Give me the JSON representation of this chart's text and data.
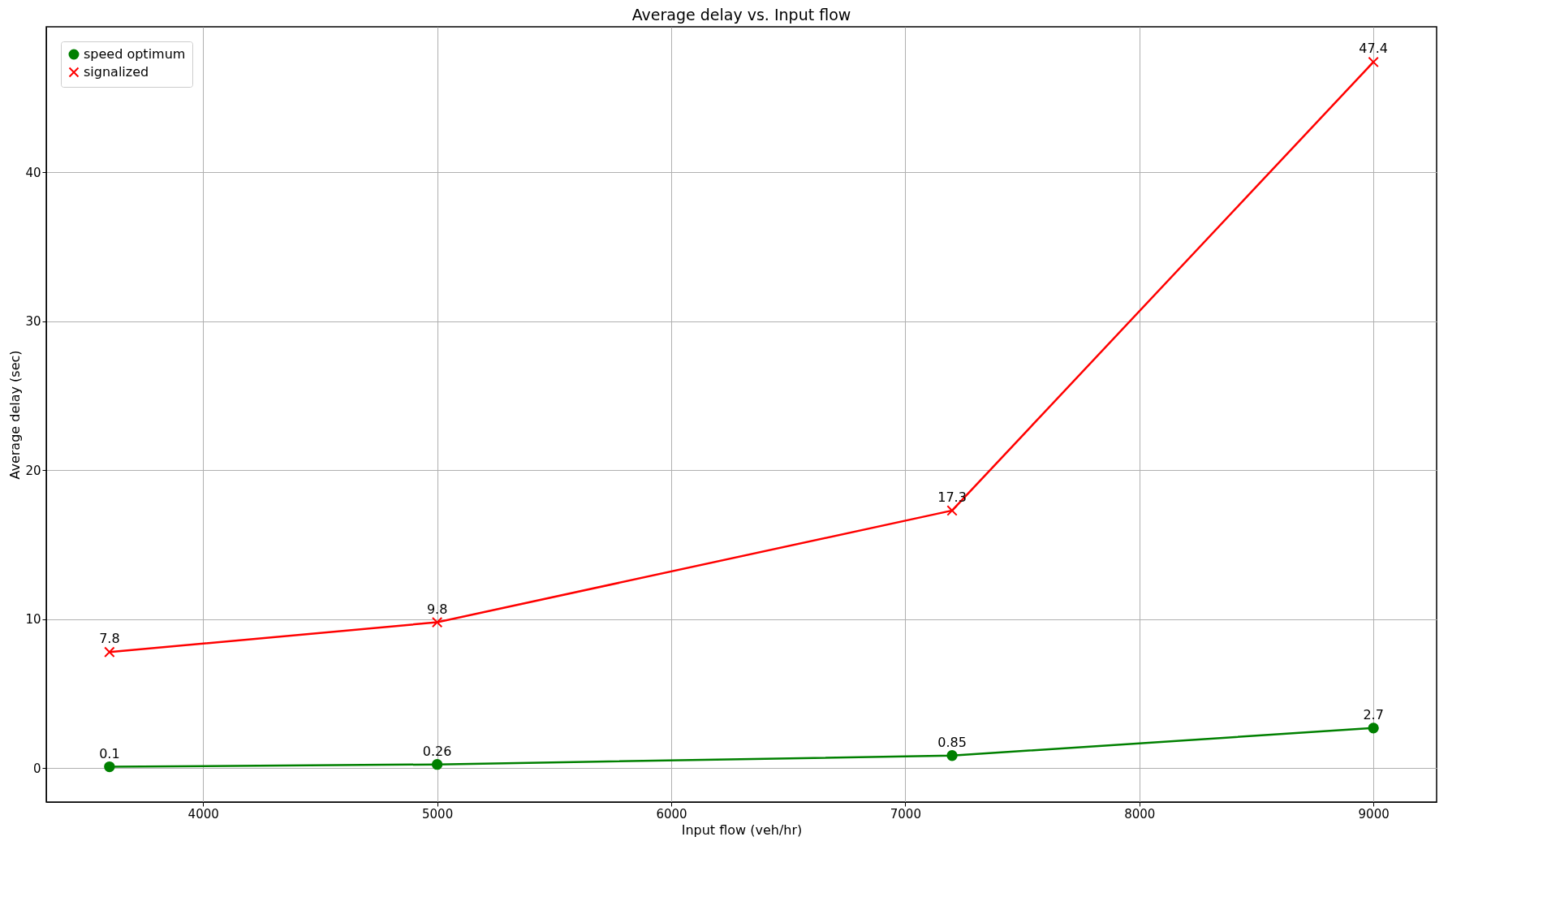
{
  "chart_data": {
    "type": "line",
    "title": "Average delay vs. Input flow",
    "xlabel": "Input flow (veh/hr)",
    "ylabel": "Average delay (sec)",
    "x": [
      3600,
      5000,
      7200,
      9000
    ],
    "series": [
      {
        "name": "speed optimum",
        "color": "#008000",
        "marker": "circle",
        "values": [
          0.1,
          0.26,
          0.85,
          2.7
        ]
      },
      {
        "name": "signalized",
        "color": "#ff0000",
        "marker": "cross",
        "values": [
          7.8,
          9.8,
          17.3,
          47.4
        ]
      }
    ],
    "xlim": [
      3330,
      9270
    ],
    "xticks": [
      4000,
      5000,
      6000,
      7000,
      8000,
      9000
    ],
    "ylim": [
      -2.265,
      49.765
    ],
    "yticks": [
      0,
      10,
      20,
      30,
      40
    ],
    "grid": true,
    "legend": "top left",
    "data_labels": true,
    "line_style": "solid"
  }
}
